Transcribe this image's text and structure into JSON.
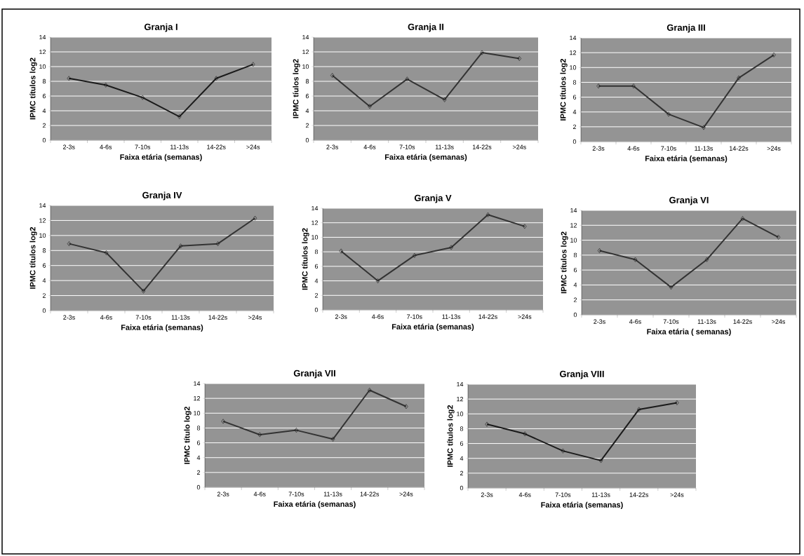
{
  "chart_data": [
    {
      "type": "line",
      "title": "Granja I",
      "xlabel": "Faixa etária (semanas)",
      "ylabel": "IPMC títulos log2",
      "categories": [
        "2-3s",
        "4-6s",
        "7-10s",
        "11-13s",
        "14-22s",
        ">24s"
      ],
      "values": [
        8.4,
        7.5,
        5.8,
        3.2,
        8.4,
        10.3
      ],
      "color": "#1a1a1a",
      "ylim": [
        0,
        14
      ],
      "yticks": [
        0,
        2,
        4,
        6,
        8,
        10,
        12,
        14
      ],
      "grid": "y",
      "marker": "diamond"
    },
    {
      "type": "line",
      "title": "Granja II",
      "xlabel": "Faixa etária (semanas)",
      "ylabel": "IPMC tíulos log2",
      "categories": [
        "2-3s",
        "4-6s",
        "7-10s",
        "11-13s",
        "14-22s",
        ">24s"
      ],
      "values": [
        8.8,
        4.6,
        8.3,
        5.5,
        11.9,
        11.1
      ],
      "color": "#333333",
      "ylim": [
        0,
        14
      ],
      "yticks": [
        0,
        2,
        4,
        6,
        8,
        10,
        12,
        14
      ],
      "grid": "y",
      "marker": "diamond"
    },
    {
      "type": "line",
      "title": "Granja III",
      "xlabel": "Faixa etária (semanas)",
      "ylabel": "IPMC títulos log2",
      "categories": [
        "2-3s",
        "4-6s",
        "7-10s",
        "11-13s",
        "14-22s",
        ">24s"
      ],
      "values": [
        7.5,
        7.5,
        3.7,
        1.9,
        8.6,
        11.7
      ],
      "color": "#333333",
      "ylim": [
        0,
        14
      ],
      "yticks": [
        0,
        2,
        4,
        6,
        8,
        10,
        12,
        14
      ],
      "grid": "y",
      "marker": "diamond"
    },
    {
      "type": "line",
      "title": "Granja IV",
      "xlabel": "Faixa etária (semanas)",
      "ylabel": "IPMC títulos log2",
      "categories": [
        "2-3s",
        "4-6s",
        "7-10s",
        "11-13s",
        "14-22s",
        ">24s"
      ],
      "values": [
        8.9,
        7.7,
        2.6,
        8.6,
        8.9,
        12.3
      ],
      "color": "#333333",
      "ylim": [
        0,
        14
      ],
      "yticks": [
        0,
        2,
        4,
        6,
        8,
        10,
        12,
        14
      ],
      "grid": "y",
      "marker": "diamond"
    },
    {
      "type": "line",
      "title": "Granja V",
      "xlabel": "Faixa etária (semanas)",
      "ylabel": "IPMC títulos log2",
      "categories": [
        "2-3s",
        "4-6s",
        "7-10s",
        "11-13s",
        "14-22s",
        ">24s"
      ],
      "values": [
        8.1,
        4.0,
        7.5,
        8.6,
        13.1,
        11.5
      ],
      "color": "#333333",
      "ylim": [
        0,
        14
      ],
      "yticks": [
        0,
        2,
        4,
        6,
        8,
        10,
        12,
        14
      ],
      "grid": "y",
      "marker": "diamond"
    },
    {
      "type": "line",
      "title": "Granja VI",
      "xlabel": "Faixa etária ( semanas)",
      "ylabel": "IPMC títulos log2",
      "categories": [
        "2-3s",
        "4-6s",
        "7-10s",
        "11-13s",
        "14-22s",
        ">24s"
      ],
      "values": [
        8.6,
        7.4,
        3.7,
        7.4,
        12.9,
        10.4
      ],
      "color": "#333333",
      "ylim": [
        0,
        14
      ],
      "yticks": [
        0,
        2,
        4,
        6,
        8,
        10,
        12,
        14
      ],
      "grid": "y",
      "marker": "diamond"
    },
    {
      "type": "line",
      "title": "Granja VII",
      "xlabel": "Faixa etária (semanas)",
      "ylabel": "IPMC título log2",
      "categories": [
        "2-3s",
        "4-6s",
        "7-10s",
        "11-13s",
        "14-22s",
        ">24s"
      ],
      "values": [
        8.9,
        7.1,
        7.7,
        6.5,
        13.1,
        10.9
      ],
      "color": "#333333",
      "ylim": [
        0,
        14
      ],
      "yticks": [
        0,
        2,
        4,
        6,
        8,
        10,
        12,
        14
      ],
      "grid": "y",
      "marker": "diamond"
    },
    {
      "type": "line",
      "title": "Granja VIII",
      "xlabel": "Faixa etária (semanas)",
      "ylabel": "IPMC títulos log2",
      "categories": [
        "2-3s",
        "4-6s",
        "7-10s",
        "11-13s",
        "14-22s",
        ">24s"
      ],
      "values": [
        8.6,
        7.3,
        5.0,
        3.7,
        10.6,
        11.5
      ],
      "color": "#1a1a1a",
      "ylim": [
        0,
        14
      ],
      "yticks": [
        0,
        2,
        4,
        6,
        8,
        10,
        12,
        14
      ],
      "grid": "y",
      "marker": "diamond"
    }
  ]
}
